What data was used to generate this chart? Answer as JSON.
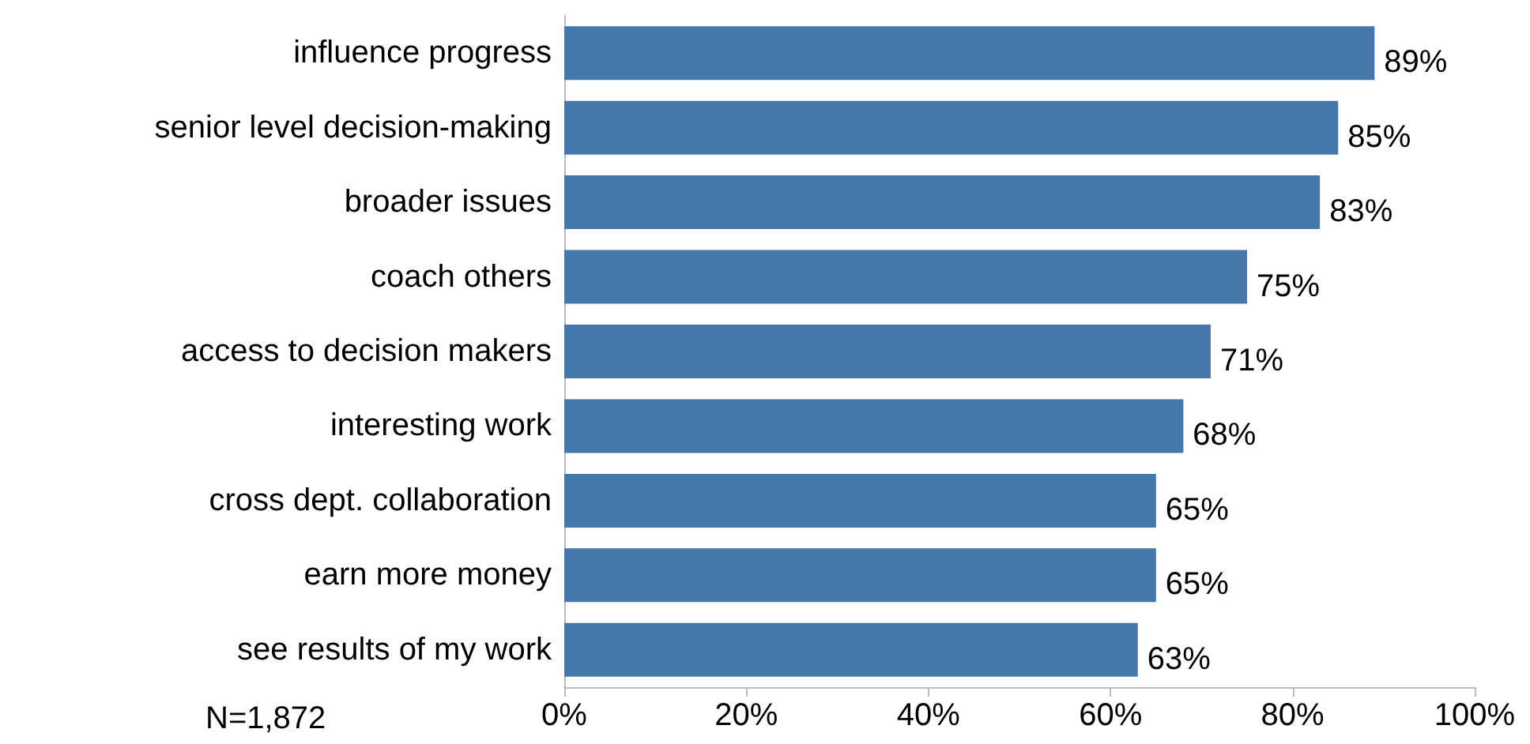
{
  "chart_data": {
    "type": "bar",
    "orientation": "horizontal",
    "categories": [
      "influence progress",
      "senior level decision-making",
      "broader issues",
      "coach others",
      "access to decision makers",
      "interesting work",
      "cross dept. collaboration",
      "earn more money",
      "see results of my work"
    ],
    "values": [
      89,
      85,
      83,
      75,
      71,
      68,
      65,
      65,
      63
    ],
    "value_labels": [
      "89%",
      "85%",
      "83%",
      "75%",
      "71%",
      "68%",
      "65%",
      "65%",
      "63%"
    ],
    "color": "#4677aa",
    "xlim": [
      0,
      100
    ],
    "xticks": [
      {
        "value": 0,
        "label": "0%"
      },
      {
        "value": 20,
        "label": "20%"
      },
      {
        "value": 40,
        "label": "40%"
      },
      {
        "value": 60,
        "label": "60%"
      },
      {
        "value": 80,
        "label": "80%"
      },
      {
        "value": 100,
        "label": "100%"
      }
    ],
    "grid": false,
    "annotations": [
      "N=1,872"
    ]
  }
}
